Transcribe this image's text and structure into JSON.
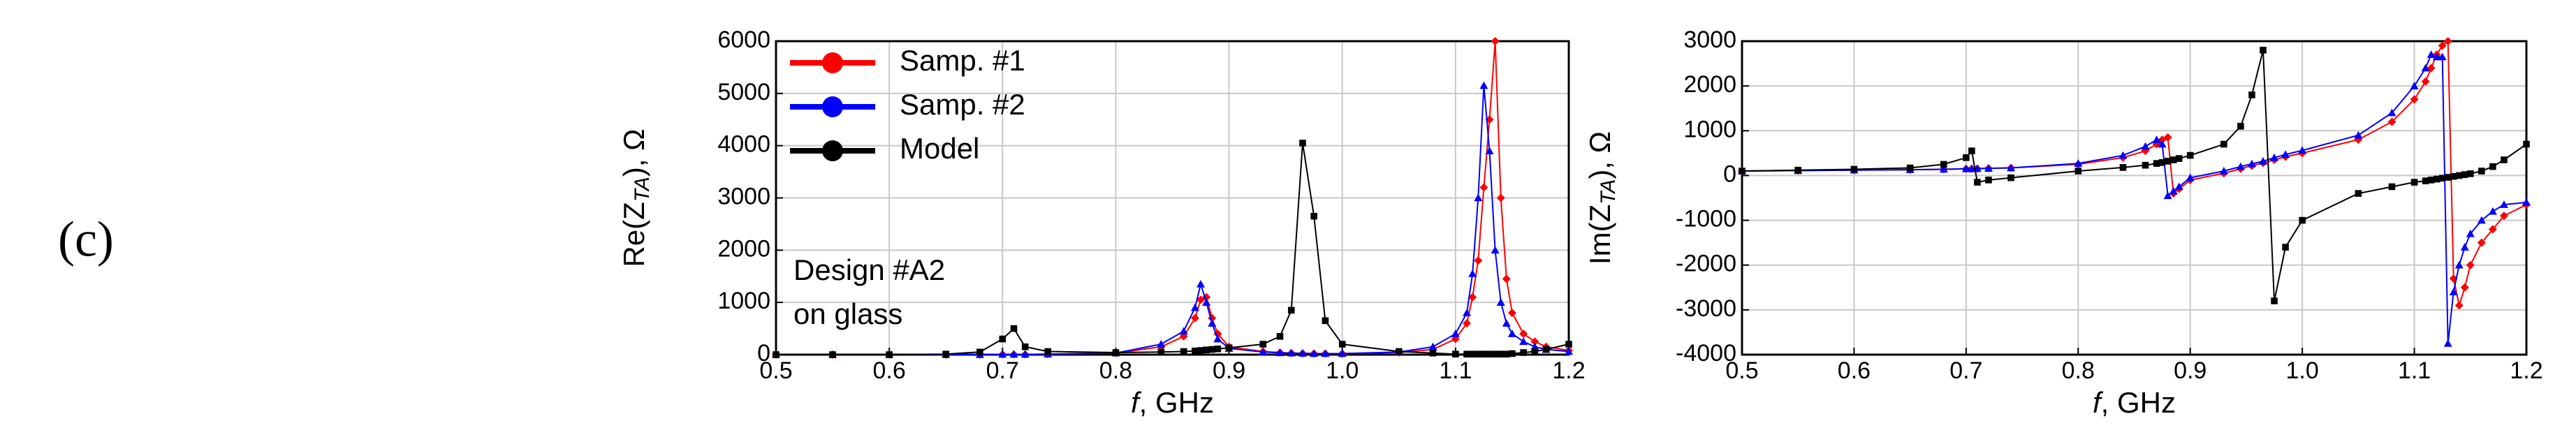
{
  "panel_label": "(c)",
  "chart_data": [
    {
      "type": "line",
      "xlabel": {
        "var": "f",
        "rest": ", GHz"
      },
      "ylabel": {
        "prefix": "Re(Z",
        "sub": "TA",
        "suffix": "), Ω"
      },
      "annotation": [
        "Design #A2",
        "on glass"
      ],
      "legend": "upper left",
      "grid": true,
      "xlim": [
        0.5,
        1.2
      ],
      "xticks": [
        0.5,
        0.6,
        0.7,
        0.8,
        0.9,
        {
          "value": 1,
          "label": "1.0"
        },
        1.1,
        1.2
      ],
      "ylim": [
        0,
        6000
      ],
      "yticks": [
        0,
        1000,
        2000,
        3000,
        4000,
        5000,
        6000
      ],
      "x": [
        0.5,
        0.55,
        0.6,
        0.65,
        0.68,
        0.7,
        0.71,
        0.72,
        0.74,
        0.8,
        0.84,
        0.86,
        0.87,
        0.875,
        0.88,
        0.885,
        0.89,
        0.9,
        0.93,
        0.945,
        0.955,
        0.965,
        0.975,
        0.985,
        1.0,
        1.05,
        1.08,
        1.1,
        1.11,
        1.115,
        1.12,
        1.125,
        1.13,
        1.135,
        1.14,
        1.145,
        1.15,
        1.16,
        1.17,
        1.18,
        1.2
      ],
      "series": [
        {
          "name": "Samp. #1",
          "color": "#ff0000",
          "marker": "diamond",
          "values": [
            0,
            0,
            0,
            0,
            0,
            5,
            5,
            5,
            10,
            30,
            150,
            350,
            700,
            1050,
            1100,
            700,
            400,
            150,
            60,
            40,
            30,
            25,
            20,
            20,
            20,
            40,
            100,
            300,
            600,
            1100,
            1800,
            3200,
            4500,
            6000,
            3000,
            1450,
            800,
            400,
            250,
            150,
            80
          ]
        },
        {
          "name": "Samp. #2",
          "color": "#0000ff",
          "marker": "triangle",
          "values": [
            0,
            0,
            0,
            0,
            0,
            5,
            5,
            5,
            10,
            30,
            200,
            450,
            900,
            1350,
            1000,
            600,
            300,
            120,
            50,
            35,
            30,
            25,
            20,
            20,
            20,
            50,
            150,
            400,
            800,
            1550,
            3000,
            5150,
            3900,
            2000,
            1000,
            600,
            400,
            250,
            150,
            100,
            60
          ]
        },
        {
          "name": "Model",
          "color": "#000000",
          "marker": "square",
          "values": [
            0,
            0,
            0,
            10,
            50,
            300,
            500,
            150,
            60,
            40,
            50,
            60,
            70,
            80,
            90,
            100,
            110,
            130,
            200,
            350,
            850,
            4050,
            2650,
            650,
            200,
            60,
            30,
            10,
            10,
            10,
            10,
            10,
            10,
            10,
            10,
            10,
            20,
            40,
            60,
            100,
            200
          ]
        }
      ]
    },
    {
      "type": "line",
      "xlabel": {
        "var": "f",
        "rest": ", GHz"
      },
      "ylabel": {
        "prefix": "Im(Z",
        "sub": "TA",
        "suffix": "), Ω"
      },
      "grid": true,
      "xlim": [
        0.5,
        1.2
      ],
      "xticks": [
        0.5,
        0.6,
        0.7,
        0.8,
        0.9,
        {
          "value": 1,
          "label": "1.0"
        },
        1.1,
        1.2
      ],
      "ylim": [
        -4000,
        3000
      ],
      "yticks": [
        -4000,
        -3000,
        -2000,
        -1000,
        0,
        1000,
        2000,
        3000
      ],
      "x": [
        0.5,
        0.55,
        0.6,
        0.65,
        0.68,
        0.7,
        0.705,
        0.71,
        0.72,
        0.74,
        0.8,
        0.84,
        0.86,
        0.87,
        0.875,
        0.88,
        0.885,
        0.89,
        0.9,
        0.93,
        0.945,
        0.955,
        0.965,
        0.975,
        0.985,
        1.0,
        1.05,
        1.08,
        1.1,
        1.11,
        1.115,
        1.12,
        1.125,
        1.13,
        1.135,
        1.14,
        1.145,
        1.15,
        1.16,
        1.17,
        1.18,
        1.2
      ],
      "series": [
        {
          "name": "Samp. #1",
          "color": "#ff0000",
          "marker": "diamond",
          "values": [
            100,
            110,
            120,
            130,
            140,
            150,
            150,
            155,
            160,
            170,
            250,
            400,
            550,
            700,
            800,
            850,
            -400,
            -300,
            -100,
            50,
            150,
            220,
            280,
            350,
            420,
            500,
            800,
            1200,
            1700,
            2100,
            2400,
            2700,
            2900,
            3000,
            -2300,
            -2900,
            -2500,
            -2000,
            -1500,
            -1200,
            -900,
            -650
          ]
        },
        {
          "name": "Samp. #2",
          "color": "#0000ff",
          "marker": "triangle",
          "values": [
            100,
            110,
            120,
            130,
            140,
            150,
            150,
            155,
            160,
            170,
            270,
            450,
            650,
            800,
            700,
            -450,
            -350,
            -250,
            -50,
            100,
            200,
            260,
            320,
            400,
            470,
            560,
            900,
            1400,
            2000,
            2400,
            2700,
            2650,
            2650,
            -3750,
            -2600,
            -2000,
            -1600,
            -1300,
            -1000,
            -800,
            -650,
            -600
          ]
        },
        {
          "name": "Model",
          "color": "#000000",
          "marker": "square",
          "values": [
            100,
            120,
            140,
            170,
            250,
            400,
            550,
            -150,
            -100,
            -50,
            100,
            180,
            230,
            270,
            290,
            320,
            350,
            380,
            450,
            700,
            1100,
            1800,
            2800,
            -2800,
            -1600,
            -1000,
            -400,
            -250,
            -150,
            -120,
            -100,
            -80,
            -60,
            -40,
            -20,
            0,
            20,
            40,
            100,
            200,
            350,
            700
          ]
        }
      ]
    }
  ]
}
